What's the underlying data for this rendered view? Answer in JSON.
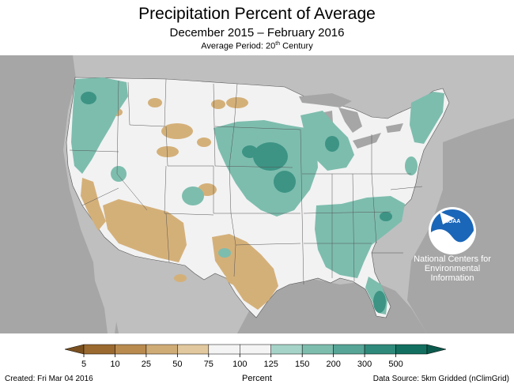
{
  "title": "Precipitation Percent of Average",
  "subtitle": "December 2015 – February 2016",
  "average_period_prefix": "Average Period: 20",
  "average_period_sup": "th",
  "average_period_suffix": " Century",
  "logo_text": "NOAA",
  "org_lines": [
    "National Centers for",
    "Environmental",
    "Information"
  ],
  "legend": {
    "unit_label": "Percent",
    "ticks": [
      "5",
      "10",
      "25",
      "50",
      "75",
      "100",
      "125",
      "150",
      "200",
      "300",
      "500"
    ],
    "colors": [
      "#9a6a30",
      "#b98b4f",
      "#cfab76",
      "#e2c89e",
      "#f4f4f4",
      "#f4f4f4",
      "#a6d3c7",
      "#7dbdae",
      "#56a596",
      "#2f8a7b",
      "#137060"
    ],
    "arrow_left_color": "#7a5020",
    "arrow_right_color": "#0b5a4d"
  },
  "footer": {
    "created": "Created: Fri Mar 04 2016",
    "source": "Data Source: 5km Gridded (nClimGrid)"
  },
  "colors": {
    "background_land": "#bfbfbf",
    "ocean": "#a6a6a6",
    "conus_base": "#f2f2f2",
    "dry": "#d4b079",
    "wet": "#7dbdae",
    "very_wet": "#3d9484"
  }
}
